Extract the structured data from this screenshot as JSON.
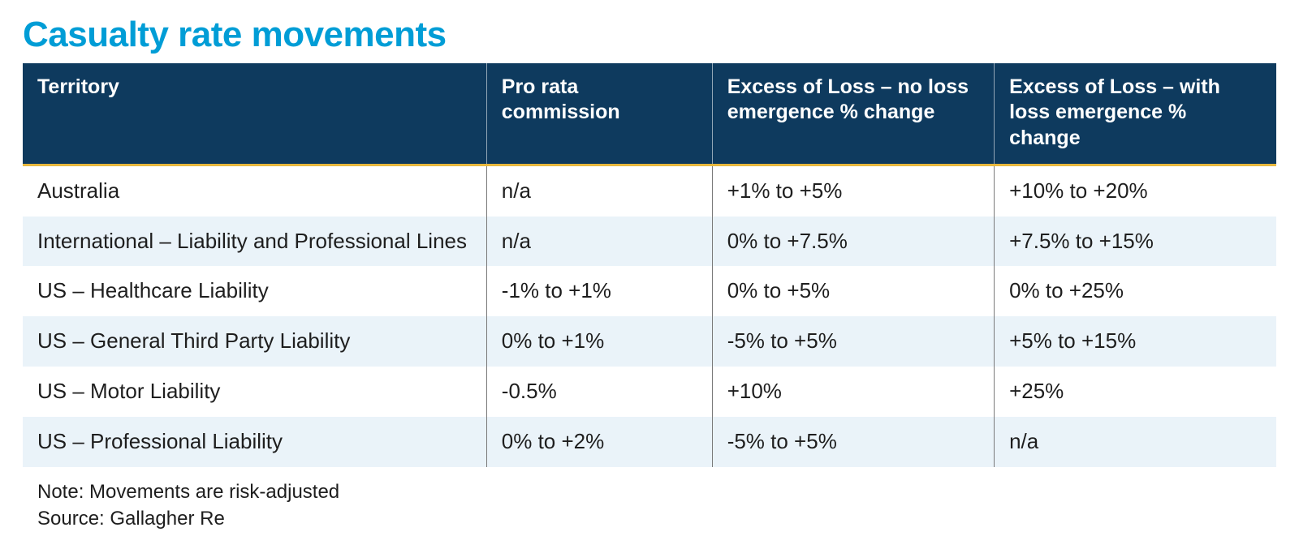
{
  "title": "Casualty rate movements",
  "colors": {
    "title": "#009dd6",
    "header_bg": "#0e3a5e",
    "header_text": "#ffffff",
    "accent_border": "#e8b83e",
    "row_alt_bg": "#eaf3f9",
    "row_bg": "#ffffff",
    "cell_border": "#7a7a7a",
    "body_text": "#1e1e1e"
  },
  "typography": {
    "title_fontsize_pt": 33,
    "header_fontsize_pt": 19,
    "cell_fontsize_pt": 20,
    "footnote_fontsize_pt": 18,
    "font_family": "Segoe UI / Helvetica Neue"
  },
  "table": {
    "type": "table",
    "column_widths_pct": [
      37,
      18,
      22.5,
      22.5
    ],
    "columns": [
      "Territory",
      "Pro rata commission",
      "Excess of Loss – no loss emergence % change",
      "Excess of Loss – with loss emergence % change"
    ],
    "rows": [
      [
        "Australia",
        "n/a",
        "+1% to +5%",
        "+10% to +20%"
      ],
      [
        "International – Liability and Professional Lines",
        "n/a",
        "0% to +7.5%",
        "+7.5% to +15%"
      ],
      [
        "US – Healthcare Liability",
        "-1% to +1%",
        "0% to +5%",
        "0% to +25%"
      ],
      [
        "US – General Third Party Liability",
        "0% to +1%",
        "-5% to +5%",
        "+5% to +15%"
      ],
      [
        "US – Motor Liability",
        "-0.5%",
        "+10%",
        "+25%"
      ],
      [
        "US – Professional Liability",
        "0% to +2%",
        "-5% to +5%",
        "n/a"
      ]
    ]
  },
  "footnote": {
    "note": "Note: Movements are risk-adjusted",
    "source": "Source: Gallagher Re"
  }
}
